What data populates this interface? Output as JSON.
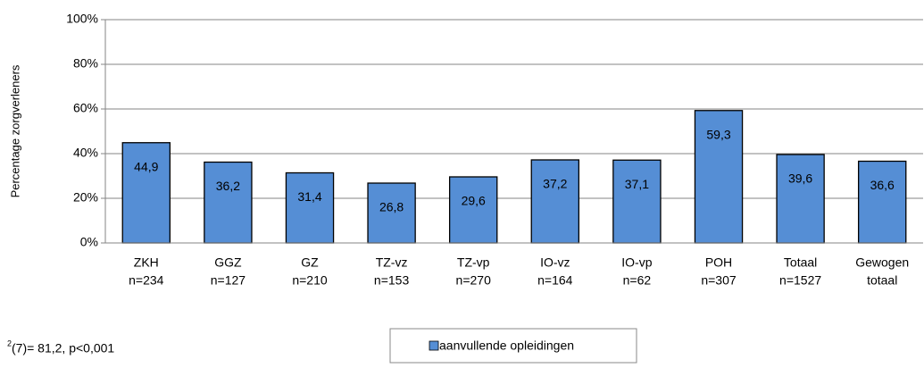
{
  "chart_data": {
    "type": "bar",
    "ylabel": "Percentage zorgverleners",
    "categories": [
      [
        "ZKH",
        "n=234"
      ],
      [
        "GGZ",
        "n=127"
      ],
      [
        "GZ",
        "n=210"
      ],
      [
        "TZ-vz",
        "n=153"
      ],
      [
        "TZ-vp",
        "n=270"
      ],
      [
        "IO-vz",
        "n=164"
      ],
      [
        "IO-vp",
        "n=62"
      ],
      [
        "POH",
        "n=307"
      ],
      [
        "Totaal",
        "n=1527"
      ],
      [
        "Gewogen",
        "totaal"
      ]
    ],
    "series": [
      {
        "name": "aanvullende opleidingen",
        "color": "#558ed5",
        "values": [
          44.9,
          36.2,
          31.4,
          26.8,
          29.6,
          37.2,
          37.1,
          59.3,
          39.6,
          36.6
        ],
        "value_labels": [
          "44,9",
          "36,2",
          "31,4",
          "26,8",
          "29,6",
          "37,2",
          "37,1",
          "59,3",
          "39,6",
          "36,6"
        ]
      }
    ],
    "ylim": [
      0,
      100
    ],
    "yticks": [
      {
        "value": 0,
        "label": "0%"
      },
      {
        "value": 20,
        "label": "20%"
      },
      {
        "value": 40,
        "label": "40%"
      },
      {
        "value": 60,
        "label": "60%"
      },
      {
        "value": 80,
        "label": "80%"
      },
      {
        "value": 100,
        "label": "100%"
      }
    ],
    "grid": true,
    "legend": "bottom",
    "annotation": {
      "superscript": "2",
      "text": "(7)= 81,2, p<0,001"
    }
  }
}
